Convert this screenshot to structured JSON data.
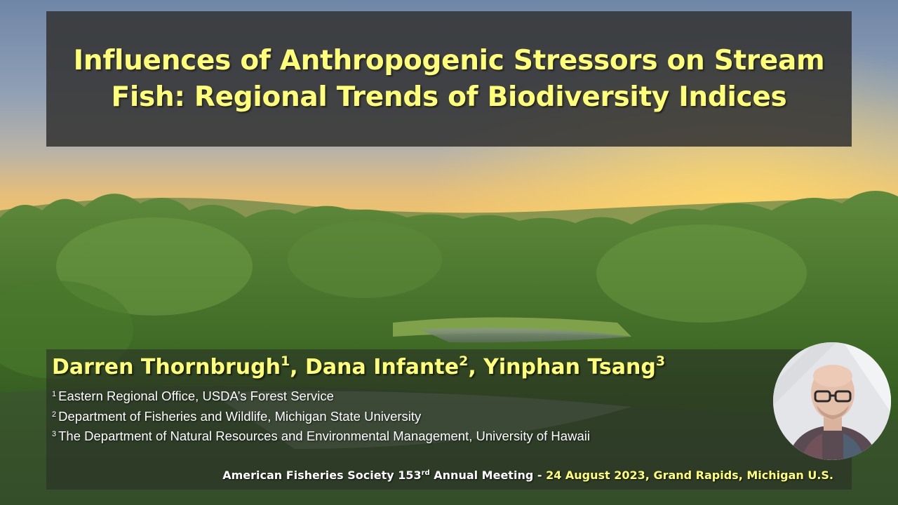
{
  "title": {
    "line1": "Influences of Anthropogenic Stressors on Stream",
    "line2": "Fish: Regional Trends of Biodiversity Indices"
  },
  "authors": [
    {
      "name": "Darren Thornbrugh",
      "mark": "1",
      "sep": ", "
    },
    {
      "name": "Dana Infante",
      "mark": "2",
      "sep": ", "
    },
    {
      "name": "Yinphan Tsang",
      "mark": "3",
      "sep": ""
    }
  ],
  "affiliations": [
    {
      "mark": "1",
      "text": "Eastern Regional Office, USDA’s Forest Service"
    },
    {
      "mark": "2",
      "text": "Department of Fisheries and Wildlife, Michigan  State University"
    },
    {
      "mark": "3",
      "text": "The Department of Natural Resources and Environmental Management, University of Hawaii"
    }
  ],
  "meeting": {
    "society_a": "American Fisheries Society 153",
    "society_sup": "rd",
    "society_b": " Annual Meeting",
    "separator": " -  ",
    "date_place": "24 August 2023, Grand Rapids, Michigan U.S."
  },
  "colors": {
    "title_text": "#ffff78",
    "title_box": "#343434",
    "body_text": "#ffffff"
  },
  "icons": {
    "background": "forest-river-sunset-photo",
    "avatar": "presenter-avatar-photo"
  }
}
